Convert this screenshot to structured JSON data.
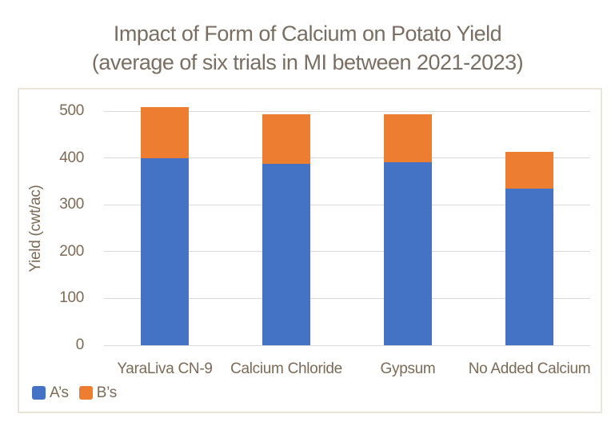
{
  "chart_data": {
    "type": "bar",
    "stacked": true,
    "title": "Impact of Form of Calcium on Potato Yield",
    "subtitle": "(average of six trials in MI between 2021-2023)",
    "categories": [
      "YaraLiva CN-9",
      "Calcium Chloride",
      "Gypsum",
      "No Added Calcium"
    ],
    "series": [
      {
        "name": "A’s",
        "color": "#4472C4",
        "values": [
          400,
          388,
          390,
          335
        ]
      },
      {
        "name": "B’s",
        "color": "#ED7D31",
        "values": [
          108,
          105,
          103,
          78
        ]
      }
    ],
    "totals": [
      508,
      493,
      493,
      413
    ],
    "xlabel": "",
    "ylabel": "Yield (cwt/ac)",
    "ylim": [
      0,
      500
    ],
    "yticks": [
      0,
      100,
      200,
      300,
      400,
      500
    ],
    "grid": true,
    "legend_position": "bottom-left",
    "colors": {
      "title_text": "#7A6E62",
      "axis_text": "#7B6A56",
      "gridline": "#D9D9D9",
      "plot_border": "#E8E4DA",
      "background": "#FFFFFF"
    }
  }
}
